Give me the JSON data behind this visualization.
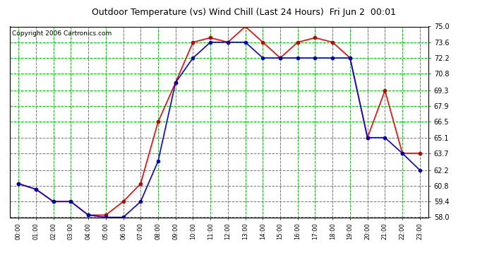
{
  "title": "Outdoor Temperature (vs) Wind Chill (Last 24 Hours)  Fri Jun 2  00:01",
  "copyright": "Copyright 2006 Cartronics.com",
  "x_labels": [
    "00:00",
    "01:00",
    "02:00",
    "03:00",
    "04:00",
    "05:00",
    "06:00",
    "07:00",
    "08:00",
    "09:00",
    "10:00",
    "11:00",
    "12:00",
    "13:00",
    "14:00",
    "15:00",
    "16:00",
    "17:00",
    "18:00",
    "19:00",
    "20:00",
    "21:00",
    "22:00",
    "23:00"
  ],
  "temp_red": [
    61.0,
    60.5,
    59.4,
    59.4,
    58.2,
    58.2,
    59.4,
    61.0,
    66.5,
    70.0,
    73.6,
    74.0,
    73.6,
    75.0,
    73.6,
    72.2,
    73.6,
    74.0,
    73.6,
    72.2,
    65.1,
    69.3,
    63.7,
    63.7
  ],
  "wind_blue": [
    61.0,
    60.5,
    59.4,
    59.4,
    58.2,
    58.0,
    58.0,
    59.4,
    63.0,
    70.0,
    72.2,
    73.6,
    73.6,
    73.6,
    72.2,
    72.2,
    72.2,
    72.2,
    72.2,
    72.2,
    65.1,
    65.1,
    63.7,
    62.2
  ],
  "ylim_min": 58.0,
  "ylim_max": 75.0,
  "yticks": [
    58.0,
    59.4,
    60.8,
    62.2,
    63.7,
    65.1,
    66.5,
    67.9,
    69.3,
    70.8,
    72.2,
    73.6,
    75.0
  ],
  "bg_color": "#ffffff",
  "plot_bg": "#ffffff",
  "line_red": "#ff0000",
  "line_blue": "#0000ff",
  "marker_red": "#cc0000",
  "marker_blue": "#000080",
  "title_fontsize": 9,
  "copyright_fontsize": 6.5
}
